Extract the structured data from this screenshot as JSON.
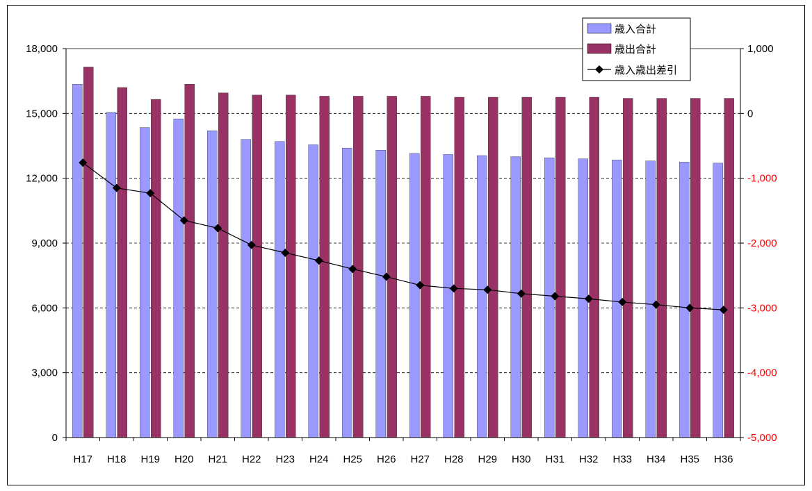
{
  "chart_data": {
    "type": "bar",
    "categories": [
      "H17",
      "H18",
      "H19",
      "H20",
      "H21",
      "H22",
      "H23",
      "H24",
      "H25",
      "H26",
      "H27",
      "H28",
      "H29",
      "H30",
      "H31",
      "H32",
      "H33",
      "H34",
      "H35",
      "H36"
    ],
    "series": [
      {
        "name": "歳入合計",
        "kind": "bar",
        "axis": "left",
        "color": "#9999FF",
        "values": [
          16350,
          15050,
          14350,
          14750,
          14200,
          13800,
          13700,
          13550,
          13400,
          13300,
          13150,
          13100,
          13050,
          13000,
          12950,
          12900,
          12850,
          12800,
          12750,
          12700
        ]
      },
      {
        "name": "歳出合計",
        "kind": "bar",
        "axis": "left",
        "color": "#993366",
        "values": [
          17150,
          16200,
          15650,
          16350,
          15950,
          15850,
          15850,
          15800,
          15800,
          15800,
          15800,
          15750,
          15750,
          15750,
          15750,
          15750,
          15700,
          15700,
          15700,
          15700
        ]
      },
      {
        "name": "歳入歳出差引",
        "kind": "line",
        "axis": "right",
        "color": "#000000",
        "marker": "diamond",
        "values": [
          -760,
          -1150,
          -1230,
          -1650,
          -1770,
          -2030,
          -2150,
          -2270,
          -2400,
          -2520,
          -2650,
          -2700,
          -2720,
          -2780,
          -2820,
          -2860,
          -2910,
          -2950,
          -3000,
          -3030
        ]
      }
    ],
    "y_left": {
      "min": 0,
      "max": 18000,
      "ticks": [
        "0",
        "3,000",
        "6,000",
        "9,000",
        "12,000",
        "15,000",
        "18,000"
      ]
    },
    "y_right": {
      "min": -5000,
      "max": 1000,
      "ticks": [
        "-5,000",
        "-4,000",
        "-3,000",
        "-2,000",
        "-1,000",
        "0",
        "1,000"
      ],
      "negative_color": "#FF0000"
    },
    "grid": "dashed horizontal",
    "legend_position": "top-right"
  }
}
